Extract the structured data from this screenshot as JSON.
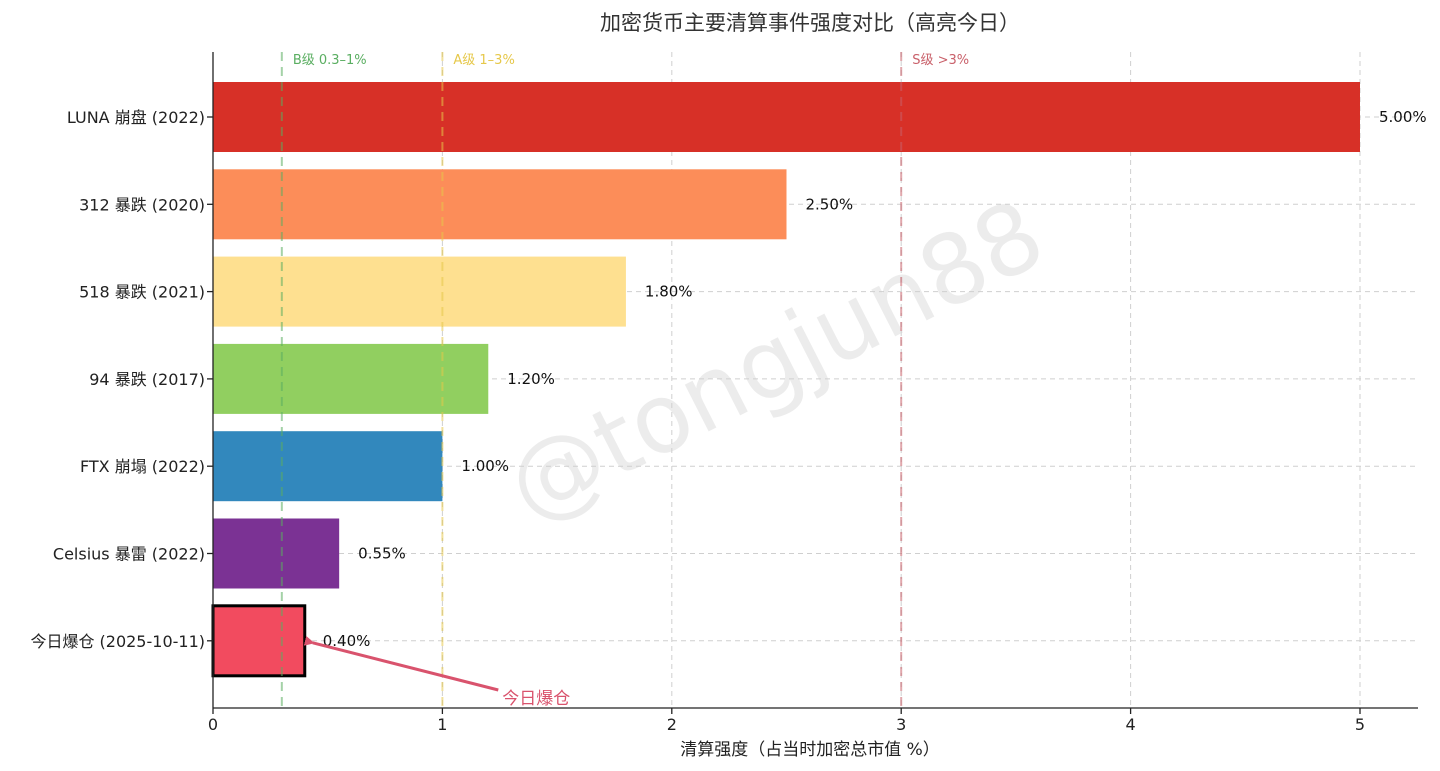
{
  "chart_data": {
    "type": "bar",
    "orientation": "horizontal",
    "title": "加密货币主要清算事件强度对比（高亮今日）",
    "xlabel": "清算强度（占当时加密总市值 %）",
    "ylabel": "",
    "xlim": [
      0,
      5.25
    ],
    "x_ticks": [
      "0",
      "1",
      "2",
      "3",
      "4",
      "5"
    ],
    "grid": true,
    "categories": [
      "LUNA 崩盘 (2022)",
      "312 暴跌 (2020)",
      "518 暴跌 (2021)",
      "94 暴跌 (2017)",
      "FTX 崩塌 (2022)",
      "Celsius 暴雷 (2022)",
      "今日爆仓 (2025-10-11)"
    ],
    "values": [
      5.0,
      2.5,
      1.8,
      1.2,
      1.0,
      0.55,
      0.4
    ],
    "value_labels": [
      "5.00%",
      "2.50%",
      "1.80%",
      "1.20%",
      "1.00%",
      "0.55%",
      "0.40%"
    ],
    "colors": [
      "#d73027",
      "#fc8d59",
      "#fee090",
      "#91cf60",
      "#3288bd",
      "#7b3294",
      "#f24b5f"
    ],
    "highlight_index": 6,
    "highlight_color": "#d9536d",
    "reference_lines": [
      {
        "x": 0.3,
        "label": "B级 0.3–1%",
        "color": "#5aae61"
      },
      {
        "x": 1.0,
        "label": "A级 1–3%",
        "color": "#e6c84a"
      },
      {
        "x": 3.0,
        "label": "S级 >3%",
        "color": "#c9606a"
      }
    ],
    "annotation": {
      "text": "今日爆仓",
      "color": "#d9536d",
      "target_x": 0.4,
      "target_category_index": 6,
      "text_x": 1.2
    },
    "watermark": "@tongjun88"
  }
}
